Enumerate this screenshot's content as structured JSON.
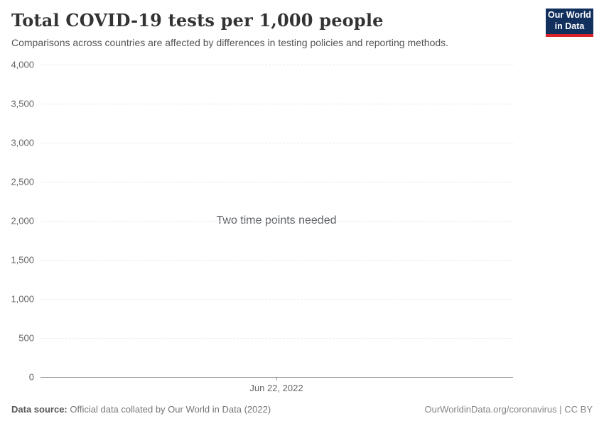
{
  "header": {
    "title": "Total COVID-19 tests per 1,000 people",
    "subtitle": "Comparisons across countries are affected by differences in testing policies and reporting methods.",
    "logo": {
      "line1": "Our World",
      "line2": "in Data",
      "bg_color": "#12305e",
      "accent_color": "#d8232a"
    }
  },
  "chart_data": {
    "type": "line",
    "title": "Total COVID-19 tests per 1,000 people",
    "subtitle": "Comparisons across countries are affected by differences in testing policies and reporting methods.",
    "series": [],
    "no_data_message": "Two time points needed",
    "ylim": [
      0,
      4000
    ],
    "yticks": [
      {
        "value": 4000,
        "label": "4,000"
      },
      {
        "value": 3500,
        "label": "3,500"
      },
      {
        "value": 3000,
        "label": "3,000"
      },
      {
        "value": 2500,
        "label": "2,500"
      },
      {
        "value": 2000,
        "label": "2,000"
      },
      {
        "value": 1500,
        "label": "1,500"
      },
      {
        "value": 1000,
        "label": "1,000"
      },
      {
        "value": 500,
        "label": "500"
      },
      {
        "value": 0,
        "label": "0"
      }
    ],
    "xticks": [
      {
        "label": "Jun 22, 2022"
      }
    ],
    "grid": "horizontal-dashed",
    "legend_position": "none"
  },
  "footer": {
    "source_label": "Data source:",
    "source_text": "Official data collated by Our World in Data (2022)",
    "link_text": "OurWorldinData.org/coronavirus",
    "license_suffix": " | CC BY"
  }
}
